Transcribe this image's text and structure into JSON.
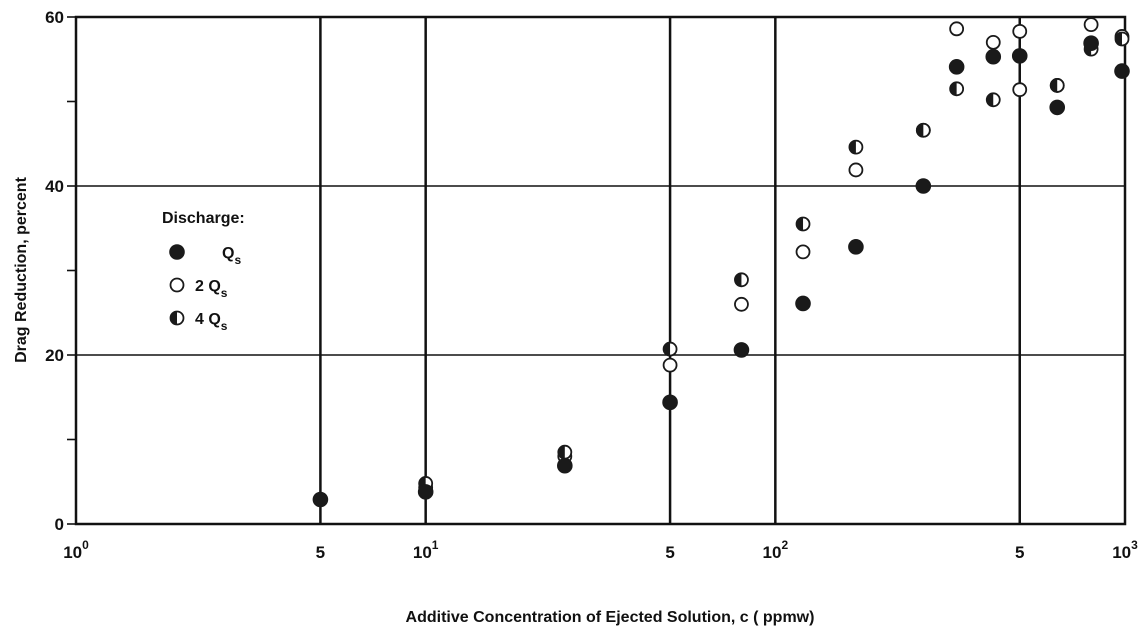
{
  "chart_data": {
    "type": "scatter",
    "x_scale": "log",
    "xlim": [
      1,
      1000
    ],
    "ylim": [
      0,
      60
    ],
    "xlabel": "Additive Concentration of Ejected Solution, c ( ppmw)",
    "ylabel": "Drag Reduction, percent",
    "x_ticks": [
      {
        "value": 1,
        "base": "10",
        "exp": "0"
      },
      {
        "value": 5,
        "base": "5",
        "exp": ""
      },
      {
        "value": 10,
        "base": "10",
        "exp": "1"
      },
      {
        "value": 50,
        "base": "5",
        "exp": ""
      },
      {
        "value": 100,
        "base": "10",
        "exp": "2"
      },
      {
        "value": 500,
        "base": "5",
        "exp": ""
      },
      {
        "value": 1000,
        "base": "10",
        "exp": "3"
      }
    ],
    "y_ticks": [
      {
        "value": 0,
        "label": "0"
      },
      {
        "value": 20,
        "label": "20"
      },
      {
        "value": 40,
        "label": "40"
      },
      {
        "value": 60,
        "label": "60"
      }
    ],
    "grid": true,
    "legend": {
      "title": "Discharge:",
      "placement": "left",
      "entries": [
        {
          "marker": "filled",
          "label": "Q",
          "sub": "s"
        },
        {
          "marker": "open",
          "label": "2 Q",
          "sub": "s"
        },
        {
          "marker": "half",
          "label": "4 Q",
          "sub": "s"
        }
      ]
    },
    "series": [
      {
        "name": "Q_s",
        "marker": "filled",
        "points": [
          {
            "x": 5,
            "y": 2.9
          },
          {
            "x": 10,
            "y": 3.8
          },
          {
            "x": 25,
            "y": 6.9
          },
          {
            "x": 50,
            "y": 14.4
          },
          {
            "x": 80,
            "y": 20.6
          },
          {
            "x": 120,
            "y": 26.1
          },
          {
            "x": 170,
            "y": 32.8
          },
          {
            "x": 265,
            "y": 40.0
          },
          {
            "x": 330,
            "y": 54.1
          },
          {
            "x": 420,
            "y": 55.3
          },
          {
            "x": 500,
            "y": 55.4
          },
          {
            "x": 640,
            "y": 49.3
          },
          {
            "x": 800,
            "y": 56.9
          },
          {
            "x": 1000,
            "y": 53.6
          }
        ]
      },
      {
        "name": "2Q_s",
        "marker": "open",
        "points": [
          {
            "x": 5,
            "y": 2.9
          },
          {
            "x": 10,
            "y": 4.3
          },
          {
            "x": 25,
            "y": 8.0
          },
          {
            "x": 50,
            "y": 18.8
          },
          {
            "x": 80,
            "y": 26.0
          },
          {
            "x": 120,
            "y": 32.2
          },
          {
            "x": 170,
            "y": 41.9
          },
          {
            "x": 265,
            "y": 46.6
          },
          {
            "x": 330,
            "y": 58.6
          },
          {
            "x": 420,
            "y": 57.0
          },
          {
            "x": 500,
            "y": 58.3
          },
          {
            "x": 500,
            "y": 51.4
          },
          {
            "x": 640,
            "y": 51.9
          },
          {
            "x": 800,
            "y": 59.1
          },
          {
            "x": 1000,
            "y": 57.7
          }
        ]
      },
      {
        "name": "4Q_s",
        "marker": "half",
        "points": [
          {
            "x": 5,
            "y": 2.9
          },
          {
            "x": 10,
            "y": 4.8
          },
          {
            "x": 25,
            "y": 8.5
          },
          {
            "x": 50,
            "y": 20.7
          },
          {
            "x": 80,
            "y": 28.9
          },
          {
            "x": 120,
            "y": 35.5
          },
          {
            "x": 170,
            "y": 44.6
          },
          {
            "x": 265,
            "y": 46.6
          },
          {
            "x": 330,
            "y": 51.5
          },
          {
            "x": 420,
            "y": 50.2
          },
          {
            "x": 640,
            "y": 51.9
          },
          {
            "x": 800,
            "y": 56.2
          },
          {
            "x": 1000,
            "y": 57.4
          }
        ]
      }
    ]
  }
}
